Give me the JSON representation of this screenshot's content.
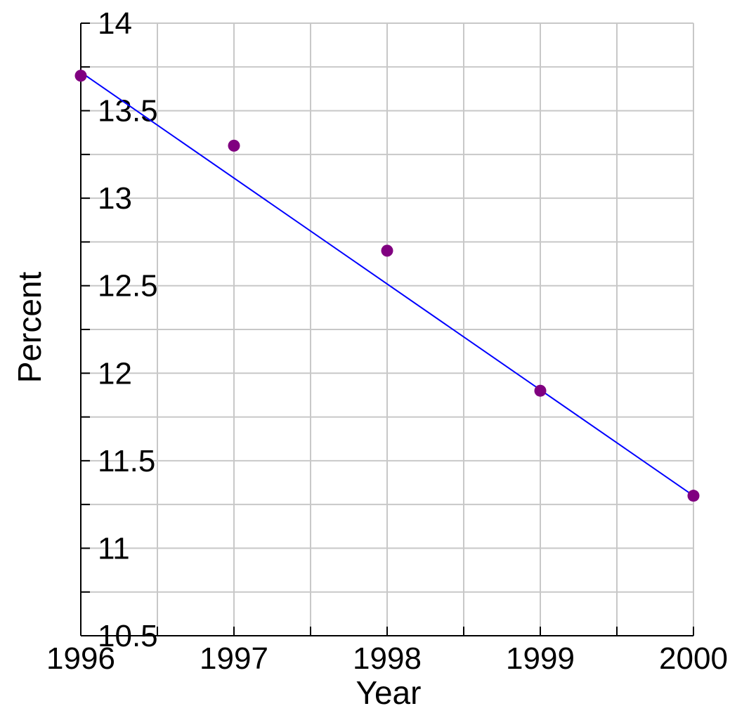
{
  "chart_data": {
    "type": "scatter",
    "title": "",
    "xlabel": "Year",
    "ylabel": "Percent",
    "xlim": [
      1996,
      2000
    ],
    "ylim": [
      10.5,
      14
    ],
    "x_ticks": [
      "1996",
      "1997",
      "1998",
      "1999",
      "2000"
    ],
    "y_ticks": [
      "10.5",
      "11",
      "11.5",
      "12",
      "12.5",
      "13",
      "13.5",
      "14"
    ],
    "x_minor_step": 0.5,
    "y_minor_step": 0.25,
    "grid": true,
    "points": [
      {
        "x": 1996,
        "y": 13.7
      },
      {
        "x": 1997,
        "y": 13.3
      },
      {
        "x": 1998,
        "y": 12.7
      },
      {
        "x": 1999,
        "y": 11.9
      },
      {
        "x": 2000,
        "y": 11.3
      }
    ],
    "trendline": {
      "x": [
        1996,
        2000
      ],
      "y": [
        13.72,
        11.3
      ]
    },
    "colors": {
      "points": "#800080",
      "trendline": "#0000ff",
      "grid": "#c8c8c8",
      "axis": "#000000"
    }
  }
}
